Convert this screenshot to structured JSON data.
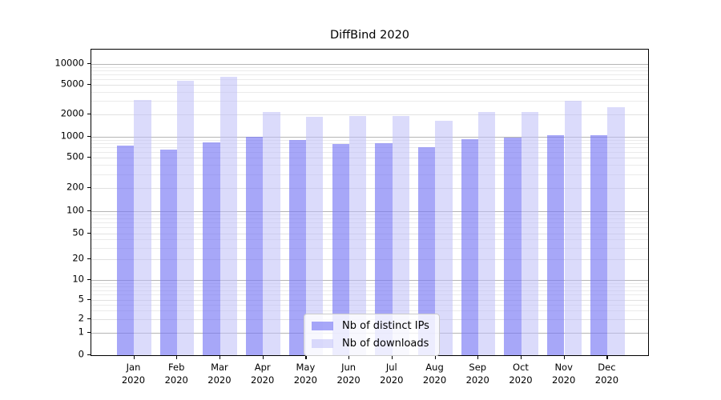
{
  "chart_data": {
    "type": "bar",
    "title": "DiffBind 2020",
    "categories": [
      "Jan",
      "Feb",
      "Mar",
      "Apr",
      "May",
      "Jun",
      "Jul",
      "Aug",
      "Sep",
      "Oct",
      "Nov",
      "Dec"
    ],
    "year_label": "2020",
    "series": [
      {
        "name": "Nb of distinct IPs",
        "values": [
          700,
          610,
          790,
          940,
          850,
          750,
          760,
          660,
          870,
          910,
          1000,
          1000
        ],
        "color": "#a8a8f8",
        "fill": "rgba(120,120,245,0.65)"
      },
      {
        "name": "Nb of downloads",
        "values": [
          2950,
          5350,
          6100,
          2050,
          1780,
          1790,
          1830,
          1560,
          2050,
          2060,
          2900,
          2400
        ],
        "color": "#dadaf9",
        "fill": "rgba(190,190,248,0.55)"
      }
    ],
    "xlabel": "",
    "ylabel": "",
    "ylim": [
      0,
      10000
    ],
    "yscale": "symlog",
    "ytick_labels": [
      "0",
      "1",
      "2",
      "5",
      "10",
      "20",
      "50",
      "100",
      "200",
      "500",
      "1000",
      "2000",
      "5000",
      "10000"
    ],
    "grid": "on",
    "legend_position": "lower center inside plot",
    "colors": {
      "major_grid": "#b5b5b5",
      "labeled_grid": "#e1e1e1",
      "minor_grid": "#ebebeb",
      "axis": "#000000",
      "background": "#ffffff",
      "text": "#000000"
    }
  }
}
